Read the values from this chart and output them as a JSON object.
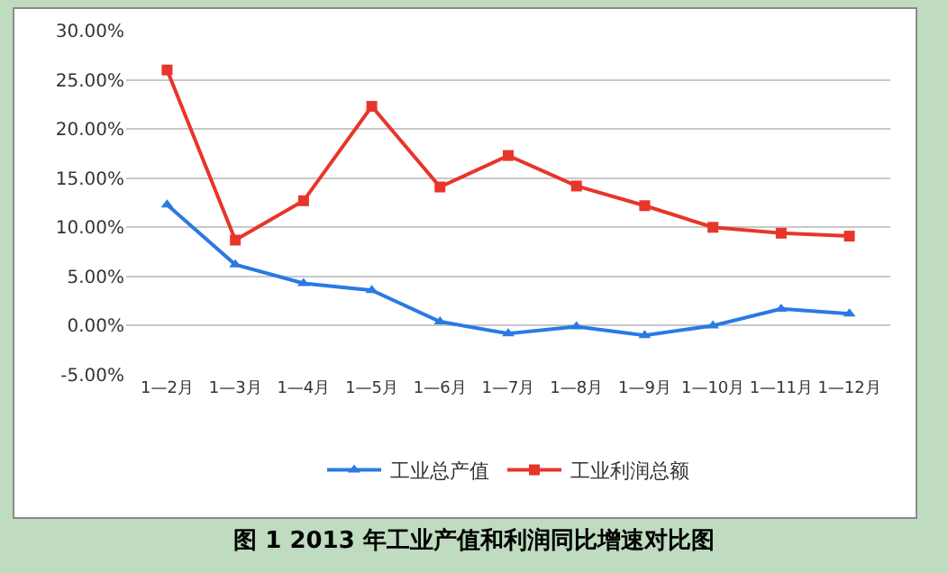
{
  "chart_data": {
    "type": "line",
    "title": "图 1 2013 年工业产值和利润同比增速对比图",
    "categories": [
      "1—2月",
      "1—3月",
      "1—4月",
      "1—5月",
      "1—6月",
      "1—7月",
      "1—8月",
      "1—9月",
      "1—10月",
      "1—11月",
      "1—12月"
    ],
    "series": [
      {
        "name": "工业总产值",
        "color": "#2a7ae2",
        "marker": "triangle",
        "values": [
          12.3,
          6.2,
          4.3,
          3.6,
          0.4,
          -0.8,
          -0.1,
          -1.0,
          0.0,
          1.7,
          1.2
        ]
      },
      {
        "name": "工业利润总额",
        "color": "#e8352a",
        "marker": "square",
        "values": [
          26.0,
          8.7,
          12.7,
          22.3,
          14.1,
          17.3,
          14.2,
          12.2,
          10.0,
          9.4,
          9.1
        ]
      }
    ],
    "ylim": [
      -5,
      30
    ],
    "yticks": [
      {
        "value": -5,
        "label": "-5.00%"
      },
      {
        "value": 0,
        "label": "0.00%"
      },
      {
        "value": 5,
        "label": "5.00%"
      },
      {
        "value": 10,
        "label": "10.00%"
      },
      {
        "value": 15,
        "label": "15.00%"
      },
      {
        "value": 20,
        "label": "20.00%"
      },
      {
        "value": 25,
        "label": "25.00%"
      },
      {
        "value": 30,
        "label": "30.00%"
      }
    ],
    "grid": "y",
    "legend": "bottom",
    "line_style": "solid"
  }
}
